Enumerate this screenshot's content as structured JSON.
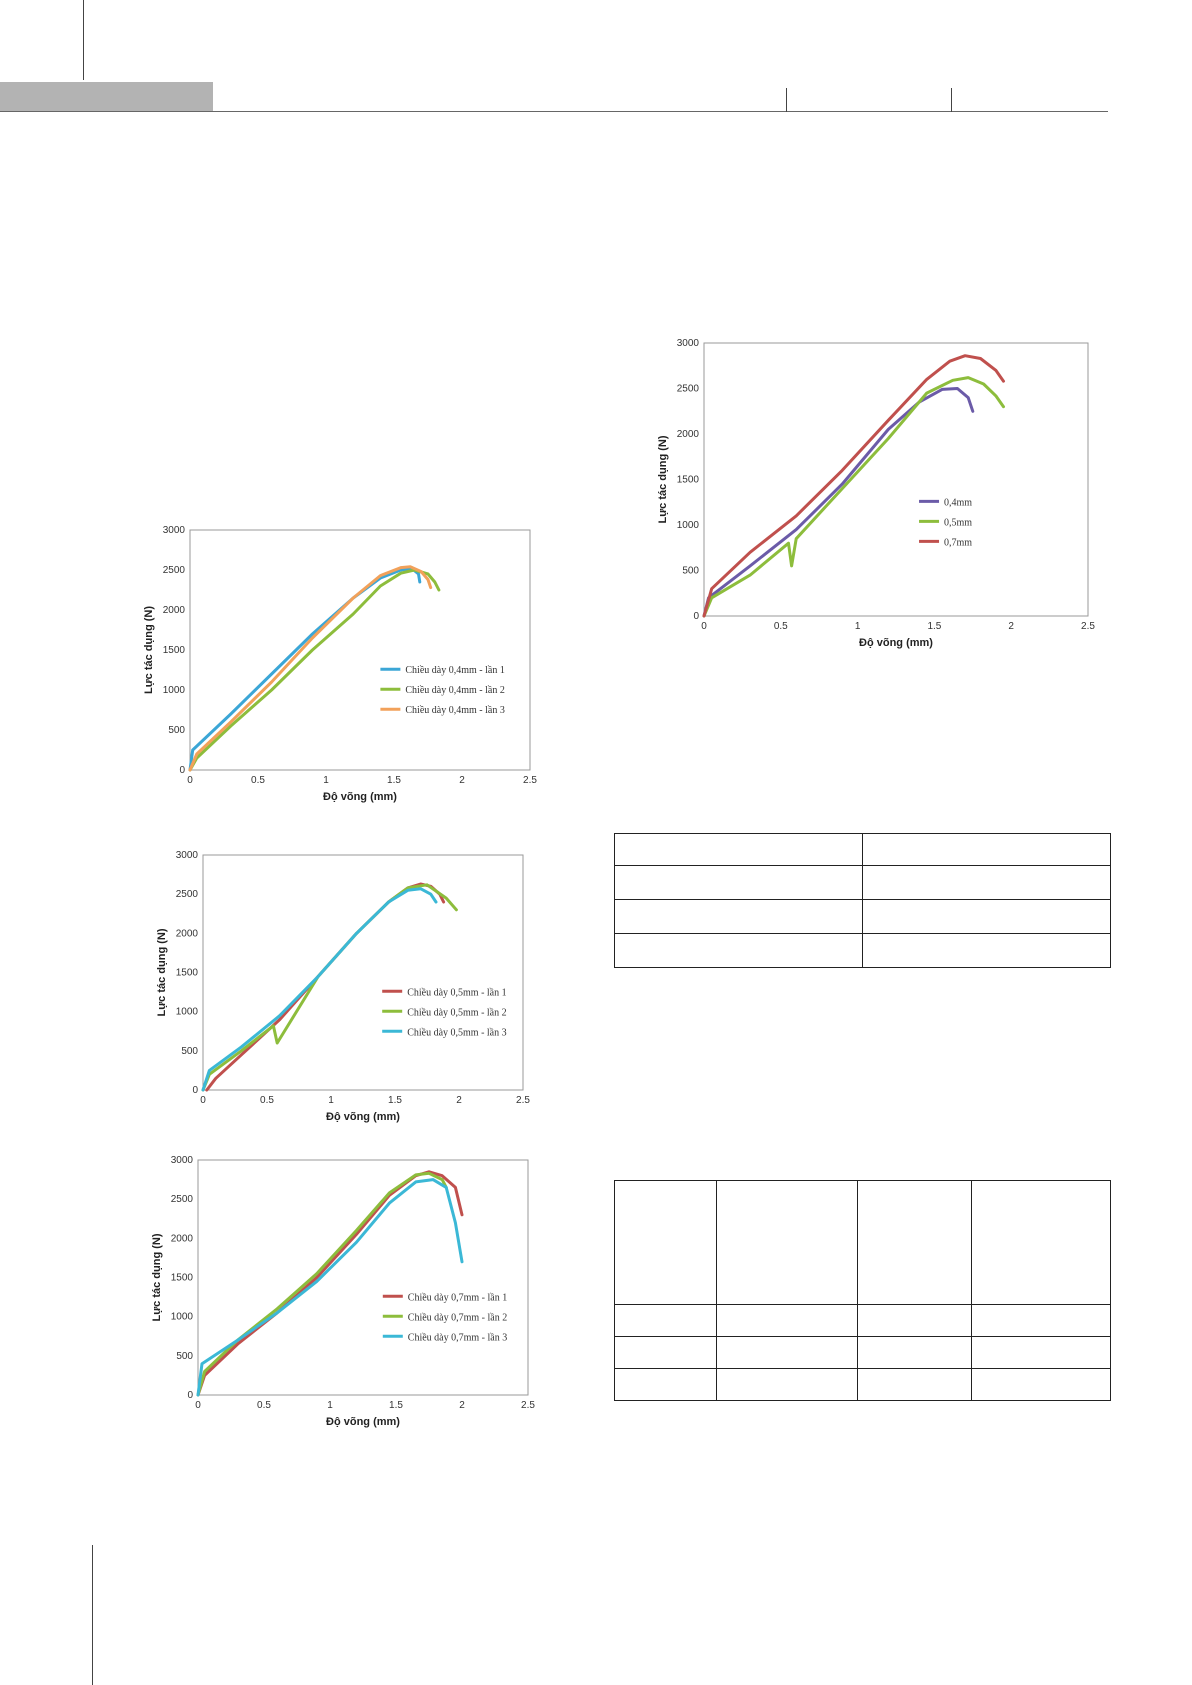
{
  "chart_data": [
    {
      "id": "chart-04",
      "type": "line",
      "xlabel": "Độ võng (mm)",
      "ylabel": "Lực tác dụng (N)",
      "xlim": [
        0,
        2.5
      ],
      "ylim": [
        0,
        3000
      ],
      "xticks": [
        "0",
        "0.5",
        "1",
        "1.5",
        "2",
        "2.5"
      ],
      "yticks": [
        "0",
        "500",
        "1000",
        "1500",
        "2000",
        "2500",
        "3000"
      ],
      "grid": false,
      "legend_position": "right",
      "series": [
        {
          "name": "Chiều dày 0,4mm - lần 1",
          "color": "#3ba6d6",
          "x": [
            0,
            0.02,
            0.3,
            0.6,
            0.9,
            1.2,
            1.4,
            1.55,
            1.63,
            1.68,
            1.69
          ],
          "y": [
            0,
            250,
            700,
            1200,
            1700,
            2150,
            2400,
            2500,
            2520,
            2450,
            2350
          ]
        },
        {
          "name": "Chiều dày 0,4mm - lần 2",
          "color": "#8dbd3c",
          "x": [
            0,
            0.05,
            0.3,
            0.6,
            0.9,
            1.2,
            1.4,
            1.55,
            1.65,
            1.75,
            1.8,
            1.83
          ],
          "y": [
            0,
            150,
            550,
            1000,
            1500,
            1950,
            2300,
            2460,
            2500,
            2450,
            2350,
            2250
          ]
        },
        {
          "name": "Chiều dày 0,4mm - lần 3",
          "color": "#f2a15a",
          "x": [
            0,
            0.05,
            0.3,
            0.6,
            0.9,
            1.2,
            1.4,
            1.55,
            1.62,
            1.7,
            1.75,
            1.77
          ],
          "y": [
            0,
            200,
            600,
            1100,
            1650,
            2150,
            2430,
            2530,
            2540,
            2480,
            2380,
            2280
          ]
        }
      ]
    },
    {
      "id": "chart-05",
      "type": "line",
      "xlabel": "Độ võng (mm)",
      "ylabel": "Lực tác dụng (N)",
      "xlim": [
        0,
        2.5
      ],
      "ylim": [
        0,
        3000
      ],
      "xticks": [
        "0",
        "0.5",
        "1",
        "1.5",
        "2",
        "2.5"
      ],
      "yticks": [
        "0",
        "500",
        "1000",
        "1500",
        "2000",
        "2500",
        "3000"
      ],
      "grid": false,
      "legend_position": "right",
      "series": [
        {
          "name": "Chiều dày 0,5mm - lần 1",
          "color": "#c0504d",
          "x": [
            0.03,
            0.1,
            0.3,
            0.6,
            0.9,
            1.2,
            1.45,
            1.6,
            1.7,
            1.78,
            1.85,
            1.88
          ],
          "y": [
            0,
            150,
            450,
            900,
            1450,
            2000,
            2400,
            2580,
            2630,
            2600,
            2500,
            2400
          ]
        },
        {
          "name": "Chiều dày 0,5mm - lần 2",
          "color": "#8dbd3c",
          "x": [
            0,
            0.05,
            0.3,
            0.55,
            0.58,
            0.9,
            1.2,
            1.45,
            1.6,
            1.75,
            1.9,
            1.98
          ],
          "y": [
            0,
            200,
            500,
            820,
            600,
            1450,
            2000,
            2400,
            2580,
            2620,
            2450,
            2300
          ]
        },
        {
          "name": "Chiều dày 0,5mm - lần 3",
          "color": "#3bb8d6",
          "x": [
            0,
            0.05,
            0.3,
            0.6,
            0.9,
            1.2,
            1.45,
            1.6,
            1.7,
            1.78,
            1.82
          ],
          "y": [
            0,
            250,
            550,
            950,
            1450,
            2000,
            2400,
            2550,
            2570,
            2500,
            2400
          ]
        }
      ]
    },
    {
      "id": "chart-07",
      "type": "line",
      "xlabel": "Độ võng (mm)",
      "ylabel": "Lực tác dụng (N)",
      "xlim": [
        0,
        2.5
      ],
      "ylim": [
        0,
        3000
      ],
      "xticks": [
        "0",
        "0.5",
        "1",
        "1.5",
        "2",
        "2.5"
      ],
      "yticks": [
        "0",
        "500",
        "1000",
        "1500",
        "2000",
        "2500",
        "3000"
      ],
      "grid": false,
      "legend_position": "right",
      "series": [
        {
          "name": "Chiều dày 0,7mm - lần 1",
          "color": "#c0504d",
          "x": [
            0,
            0.05,
            0.3,
            0.6,
            0.9,
            1.2,
            1.45,
            1.65,
            1.75,
            1.85,
            1.95,
            2.0
          ],
          "y": [
            0,
            250,
            650,
            1050,
            1500,
            2050,
            2550,
            2800,
            2850,
            2800,
            2650,
            2300
          ]
        },
        {
          "name": "Chiều dày 0,7mm - lần 2",
          "color": "#8dbd3c",
          "x": [
            0,
            0.05,
            0.3,
            0.6,
            0.9,
            1.2,
            1.45,
            1.65,
            1.75,
            1.85,
            1.88
          ],
          "y": [
            0,
            300,
            700,
            1100,
            1550,
            2100,
            2580,
            2810,
            2830,
            2750,
            2650
          ]
        },
        {
          "name": "Chiều dày 0,7mm - lần 3",
          "color": "#3bb8d6",
          "x": [
            0,
            0.03,
            0.3,
            0.6,
            0.9,
            1.2,
            1.45,
            1.65,
            1.78,
            1.88,
            1.95,
            2.0
          ],
          "y": [
            0,
            400,
            700,
            1050,
            1450,
            1950,
            2450,
            2720,
            2750,
            2650,
            2200,
            1700
          ]
        }
      ]
    },
    {
      "id": "chart-summary",
      "type": "line",
      "xlabel": "Độ võng (mm)",
      "ylabel": "Lực tác dụng (N)",
      "xlim": [
        0,
        2.5
      ],
      "ylim": [
        0,
        3000
      ],
      "xticks": [
        "0",
        "0.5",
        "1",
        "1.5",
        "2",
        "2.5"
      ],
      "yticks": [
        "0",
        "500",
        "1000",
        "1500",
        "2000",
        "2500",
        "3000"
      ],
      "grid": false,
      "legend_position": "right",
      "series": [
        {
          "name": "0,4mm",
          "color": "#6b5ba8",
          "x": [
            0,
            0.03,
            0.3,
            0.6,
            0.9,
            1.2,
            1.4,
            1.55,
            1.65,
            1.72,
            1.75
          ],
          "y": [
            0,
            200,
            550,
            950,
            1450,
            2050,
            2350,
            2490,
            2500,
            2400,
            2250
          ]
        },
        {
          "name": "0,5mm",
          "color": "#8dbd3c",
          "x": [
            0,
            0.05,
            0.3,
            0.55,
            0.57,
            0.6,
            0.9,
            1.2,
            1.45,
            1.62,
            1.72,
            1.82,
            1.9,
            1.95
          ],
          "y": [
            0,
            200,
            450,
            800,
            550,
            850,
            1400,
            1950,
            2450,
            2590,
            2620,
            2550,
            2420,
            2300
          ]
        },
        {
          "name": "0,7mm",
          "color": "#c0504d",
          "x": [
            0,
            0.05,
            0.3,
            0.6,
            0.9,
            1.2,
            1.45,
            1.6,
            1.7,
            1.8,
            1.9,
            1.95
          ],
          "y": [
            0,
            300,
            700,
            1100,
            1600,
            2150,
            2600,
            2800,
            2860,
            2830,
            2700,
            2580
          ]
        }
      ]
    }
  ]
}
